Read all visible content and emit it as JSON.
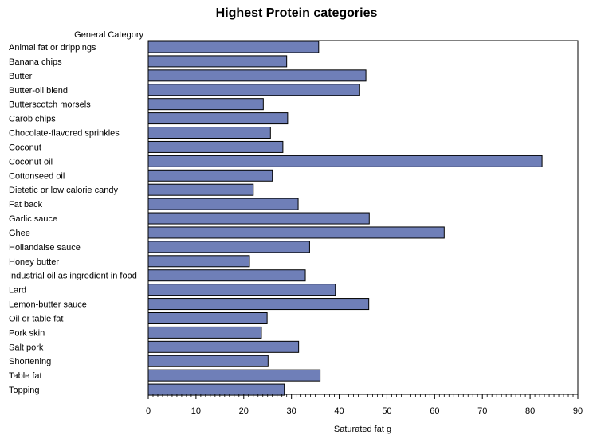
{
  "chart_data": {
    "type": "bar",
    "orientation": "horizontal",
    "title": "Highest Protein categories",
    "category_axis_label": "General Category",
    "xlabel": "Saturated fat g",
    "xlim": [
      0,
      90
    ],
    "xticks": [
      0,
      10,
      20,
      30,
      40,
      50,
      60,
      70,
      80,
      90
    ],
    "grid": false,
    "bar_color": "#6f7fb8",
    "bar_edge_color": "#000000",
    "categories": [
      "Animal fat or drippings",
      "Banana chips",
      "Butter",
      "Butter-oil blend",
      "Butterscotch morsels",
      "Carob chips",
      "Chocolate-flavored sprinkles",
      "Coconut",
      "Coconut oil",
      "Cottonseed oil",
      "Dietetic or low calorie candy",
      "Fat back",
      "Garlic sauce",
      "Ghee",
      "Hollandaise sauce",
      "Honey butter",
      "Industrial oil as ingredient in food",
      "Lard",
      "Lemon-butter sauce",
      "Oil or table fat",
      "Pork skin",
      "Salt pork",
      "Shortening",
      "Table fat",
      "Topping"
    ],
    "values": [
      35.7,
      29.0,
      45.6,
      44.3,
      24.1,
      29.2,
      25.6,
      28.2,
      82.5,
      26.0,
      22.0,
      31.4,
      46.3,
      62.0,
      33.8,
      21.2,
      32.9,
      39.2,
      46.2,
      24.9,
      23.7,
      31.5,
      25.1,
      36.0,
      28.5
    ]
  }
}
